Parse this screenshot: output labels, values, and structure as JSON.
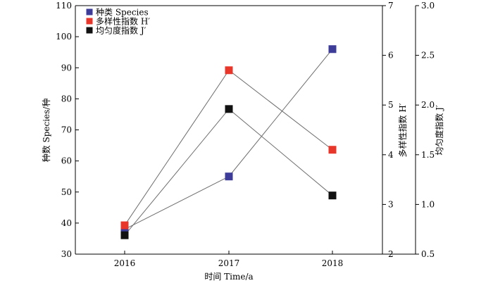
{
  "chart_data": {
    "type": "line",
    "categories": [
      "2016",
      "2017",
      "2018"
    ],
    "xlabel": "时间 Time/a",
    "axes": {
      "left": {
        "label": "种数 Species/种",
        "ylim": [
          30,
          110
        ],
        "ticks": [
          "30",
          "40",
          "50",
          "60",
          "70",
          "80",
          "90",
          "100",
          "110"
        ]
      },
      "right1": {
        "label": "多样性指数 H′",
        "ylim": [
          2,
          7
        ],
        "ticks": [
          "2",
          "3",
          "4",
          "5",
          "6",
          "7"
        ]
      },
      "right2": {
        "label": "均匀度指数 J′",
        "ylim": [
          0.5,
          3.0
        ],
        "ticks": [
          "0.5",
          "1.0",
          "1.5",
          "2.0",
          "2.5",
          "3.0"
        ]
      }
    },
    "series": [
      {
        "name": "种类 Species",
        "axis": "left",
        "color": "#3d3d99",
        "values": [
          38,
          55,
          96
        ]
      },
      {
        "name": "多样性指数 H′",
        "axis": "right1",
        "color": "#e8372a",
        "values": [
          2.58,
          5.7,
          4.1
        ]
      },
      {
        "name": "均匀度指数 J′",
        "axis": "right2",
        "color": "#111111",
        "values": [
          0.69,
          1.96,
          1.09
        ]
      }
    ],
    "legend_position": "top-left",
    "grid": false
  }
}
